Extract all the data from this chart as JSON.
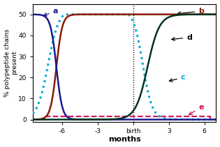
{
  "xlabel": "months",
  "ylabel": "% polypeptide chains\npresent",
  "xlim": [
    -8.5,
    7.0
  ],
  "ylim": [
    -1,
    55
  ],
  "yticks": [
    0,
    10,
    20,
    30,
    40,
    50
  ],
  "xticks_pos": [
    -6,
    -3,
    0,
    3,
    6
  ],
  "xticks_labels": [
    "-6",
    "-3",
    "birth",
    "3",
    "6"
  ],
  "birth_x": 0,
  "curves": {
    "a": {
      "color": "#1a1a8c",
      "style": "solid",
      "lw": 1.8
    },
    "b": {
      "color": "#8b1a00",
      "style": "solid",
      "lw": 1.8
    },
    "c": {
      "color": "#00aacc",
      "style": "dotted",
      "lw": 2.2
    },
    "d": {
      "color": "#003320",
      "style": "solid",
      "lw": 1.8
    },
    "e": {
      "color": "#cc1155",
      "style": "dashed",
      "lw": 1.5
    }
  },
  "label_colors": {
    "a": "#1a1a8c",
    "b": "#8b1a00",
    "c": "#00aacc",
    "d": "#000000",
    "e": "#cc1155"
  }
}
